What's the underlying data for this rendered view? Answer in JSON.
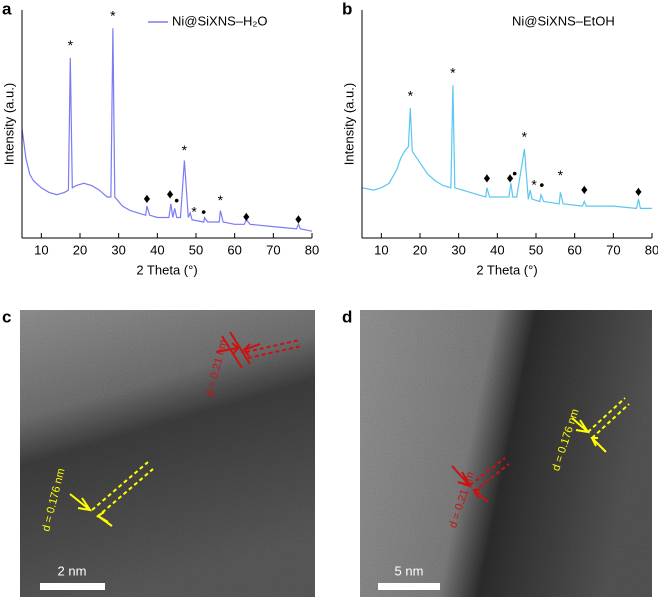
{
  "panels": [
    "a",
    "b",
    "c",
    "d"
  ],
  "chart_data": [
    {
      "type": "line",
      "x_label": "2 Theta (°)",
      "y_label": "Intensity (a.u.)",
      "xlim": [
        5,
        80
      ],
      "xticks": [
        10,
        20,
        30,
        40,
        50,
        60,
        70,
        80
      ],
      "ylim": [
        0,
        100
      ],
      "legend": "upper right",
      "legend_symbol": true,
      "x": [
        5,
        6,
        7,
        8,
        10,
        12,
        14,
        16,
        17,
        17.5,
        18,
        19,
        21,
        23,
        25,
        27,
        28,
        28.5,
        29,
        31,
        33,
        35,
        37,
        37.3,
        38,
        40,
        43,
        43.5,
        44,
        44.5,
        45,
        46,
        47,
        48,
        48.5,
        49,
        52,
        52.2,
        53,
        56,
        56.3,
        57,
        60,
        62.5,
        63,
        64,
        70,
        76,
        76.5,
        77,
        80
      ],
      "series": [
        {
          "name": "Ni@SiXNS–H₂O",
          "color": "#7b7bf2",
          "values": [
            48,
            35,
            28,
            25,
            22,
            20,
            19,
            20,
            21,
            79,
            22,
            23,
            24,
            23,
            21,
            18,
            18,
            92,
            18,
            14,
            12,
            11,
            10,
            14,
            10,
            9,
            9,
            15,
            9,
            13,
            9,
            9,
            34,
            9,
            11,
            8,
            7,
            9,
            7,
            7,
            12,
            7,
            6,
            6,
            8,
            6,
            5,
            4,
            6,
            4,
            3
          ]
        }
      ],
      "annotations": [
        {
          "text": "*",
          "x": 17.5,
          "y": 84
        },
        {
          "text": "*",
          "x": 28.5,
          "y": 97
        },
        {
          "text": "♦",
          "x": 37.3,
          "y": 17
        },
        {
          "text": "♦",
          "x": 43.3,
          "y": 19
        },
        {
          "text": "•",
          "x": 45,
          "y": 16
        },
        {
          "text": "*",
          "x": 47,
          "y": 38
        },
        {
          "text": "*",
          "x": 49.5,
          "y": 11
        },
        {
          "text": "•",
          "x": 52,
          "y": 11
        },
        {
          "text": "*",
          "x": 56.3,
          "y": 16
        },
        {
          "text": "♦",
          "x": 63,
          "y": 9
        },
        {
          "text": "♦",
          "x": 76.5,
          "y": 8
        }
      ]
    },
    {
      "type": "line",
      "x_label": "2 Theta (°)",
      "y_label": "Intensity (a.u.)",
      "xlim": [
        5,
        80
      ],
      "xticks": [
        10,
        20,
        30,
        40,
        50,
        60,
        70,
        80
      ],
      "ylim": [
        0,
        100
      ],
      "legend": "upper right",
      "legend_symbol": false,
      "x": [
        5,
        8,
        10,
        12,
        14,
        15,
        16,
        17,
        17.5,
        18,
        20,
        22,
        24,
        26,
        28,
        28.5,
        29,
        31,
        33,
        35,
        37,
        37.3,
        38,
        40,
        43,
        43.5,
        44,
        45,
        47,
        48,
        48.5,
        49,
        51,
        51.3,
        52,
        56,
        56.3,
        57,
        62,
        62.5,
        63,
        70,
        76,
        76.5,
        77,
        80
      ],
      "series": [
        {
          "name": "Ni@SiXNS–EtOH",
          "color": "#5cc6ef",
          "values": [
            22,
            21,
            22,
            24,
            30,
            35,
            38,
            40,
            57,
            38,
            33,
            28,
            25,
            23,
            22,
            67,
            22,
            21,
            20,
            19,
            18,
            22,
            18,
            18,
            18,
            24,
            18,
            18,
            39,
            17,
            21,
            17,
            16,
            19,
            16,
            15,
            20,
            15,
            14,
            16,
            14,
            14,
            13,
            17,
            13,
            13
          ]
        }
      ],
      "annotations": [
        {
          "text": "*",
          "x": 17.5,
          "y": 62
        },
        {
          "text": "*",
          "x": 28.5,
          "y": 72
        },
        {
          "text": "♦",
          "x": 37.3,
          "y": 26
        },
        {
          "text": "♦",
          "x": 43.3,
          "y": 26
        },
        {
          "text": "•",
          "x": 44.5,
          "y": 28
        },
        {
          "text": "*",
          "x": 47,
          "y": 44
        },
        {
          "text": "*",
          "x": 49.5,
          "y": 23
        },
        {
          "text": "•",
          "x": 51.5,
          "y": 23
        },
        {
          "text": "*",
          "x": 56.3,
          "y": 27
        },
        {
          "text": "♦",
          "x": 62.5,
          "y": 21
        },
        {
          "text": "♦",
          "x": 76.5,
          "y": 20
        }
      ]
    }
  ],
  "images": [
    {
      "scale_bar": "2 nm",
      "spacings": [
        "d = 0.21 nm",
        "d = 0.176 nm"
      ]
    },
    {
      "scale_bar": "5 nm",
      "spacings": [
        "d = 0.21 nm",
        "d = 0.176 nm"
      ]
    }
  ]
}
